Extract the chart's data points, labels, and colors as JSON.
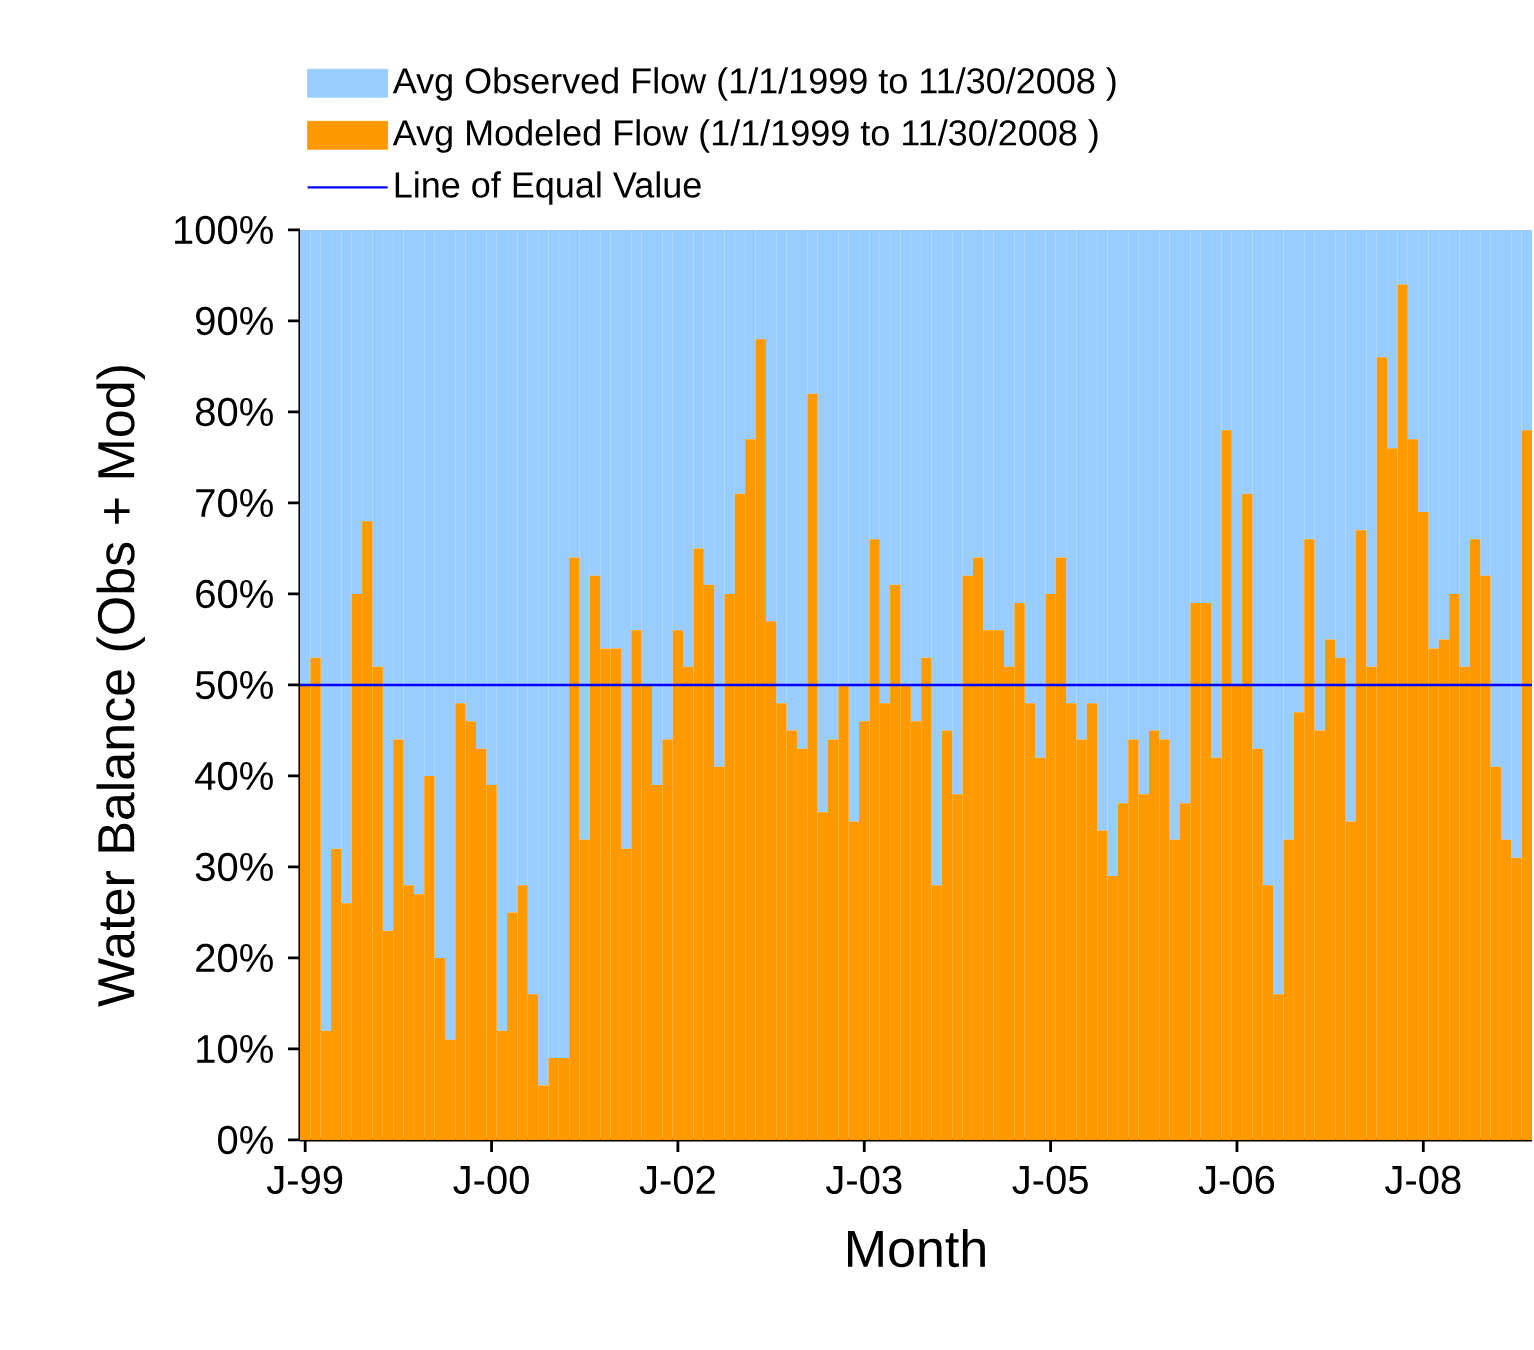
{
  "chart_data": {
    "type": "bar",
    "stacked": true,
    "xlabel": "Month",
    "ylabel": "Water Balance (Obs + Mod)",
    "categories": [
      "J-99",
      null,
      null,
      null,
      null,
      null,
      null,
      null,
      null,
      null,
      null,
      null,
      null,
      null,
      null,
      null,
      null,
      null,
      "J-00",
      null,
      null,
      null,
      null,
      null,
      null,
      null,
      null,
      null,
      null,
      null,
      null,
      null,
      null,
      null,
      null,
      null,
      "J-02",
      null,
      null,
      null,
      null,
      null,
      null,
      null,
      null,
      null,
      null,
      null,
      null,
      null,
      null,
      null,
      null,
      null,
      "J-03",
      null,
      null,
      null,
      null,
      null,
      null,
      null,
      null,
      null,
      null,
      null,
      null,
      null,
      null,
      null,
      null,
      null,
      "J-05",
      null,
      null,
      null,
      null,
      null,
      null,
      null,
      null,
      null,
      null,
      null,
      null,
      null,
      null,
      null,
      null,
      null,
      "J-06",
      null,
      null,
      null,
      null,
      null,
      null,
      null,
      null,
      null,
      null,
      null,
      null,
      null,
      null,
      null,
      null,
      null,
      "J-08",
      null,
      null,
      null,
      null,
      null,
      null,
      null,
      null,
      null,
      null
    ],
    "series": [
      {
        "name": "Avg Modeled Flow (1/1/1999 to 11/30/2008 )",
        "color": "#ff9900",
        "values": [
          50,
          53,
          12,
          32,
          26,
          60,
          68,
          52,
          23,
          44,
          28,
          27,
          40,
          20,
          11,
          48,
          46,
          43,
          39,
          12,
          25,
          28,
          16,
          6,
          9,
          9,
          64,
          33,
          62,
          54,
          54,
          32,
          56,
          50,
          39,
          44,
          56,
          52,
          65,
          61,
          41,
          60,
          71,
          77,
          88,
          57,
          48,
          45,
          43,
          82,
          36,
          44,
          50,
          35,
          46,
          66,
          48,
          61,
          50,
          46,
          53,
          28,
          45,
          38,
          62,
          64,
          56,
          56,
          52,
          59,
          48,
          42,
          60,
          64,
          48,
          44,
          48,
          34,
          29,
          37,
          44,
          38,
          45,
          44,
          33,
          37,
          59,
          59,
          42,
          78,
          50,
          71,
          43,
          28,
          16,
          33,
          47,
          66,
          45,
          55,
          53,
          35,
          67,
          52,
          86,
          76,
          94,
          77,
          69,
          54,
          55,
          60,
          52,
          66,
          62,
          41,
          33,
          31,
          78
        ]
      },
      {
        "name": "Avg Observed Flow (1/1/1999 to 11/30/2008 )",
        "color": "#99ccff",
        "values": [
          50,
          47,
          88,
          68,
          74,
          40,
          32,
          48,
          77,
          56,
          72,
          73,
          60,
          80,
          89,
          52,
          54,
          57,
          61,
          88,
          75,
          72,
          84,
          94,
          91,
          91,
          36,
          67,
          38,
          46,
          46,
          68,
          44,
          50,
          61,
          56,
          44,
          48,
          35,
          39,
          59,
          40,
          29,
          23,
          12,
          43,
          52,
          55,
          57,
          18,
          64,
          56,
          50,
          65,
          54,
          34,
          52,
          39,
          50,
          54,
          47,
          72,
          55,
          62,
          38,
          36,
          44,
          44,
          48,
          41,
          52,
          58,
          40,
          36,
          52,
          56,
          52,
          66,
          71,
          63,
          56,
          62,
          55,
          56,
          67,
          63,
          41,
          41,
          58,
          22,
          50,
          29,
          57,
          72,
          84,
          67,
          53,
          34,
          55,
          45,
          47,
          65,
          33,
          48,
          14,
          24,
          6,
          23,
          31,
          46,
          45,
          40,
          48,
          34,
          38,
          59,
          67,
          69,
          22
        ]
      }
    ],
    "ylim": [
      0,
      100
    ],
    "yticks": [
      {
        "value": 0,
        "label": "0%"
      },
      {
        "value": 10,
        "label": "10%"
      },
      {
        "value": 20,
        "label": "20%"
      },
      {
        "value": 30,
        "label": "30%"
      },
      {
        "value": 40,
        "label": "40%"
      },
      {
        "value": 50,
        "label": "50%"
      },
      {
        "value": 60,
        "label": "60%"
      },
      {
        "value": 70,
        "label": "70%"
      },
      {
        "value": 80,
        "label": "80%"
      },
      {
        "value": 90,
        "label": "90%"
      },
      {
        "value": 100,
        "label": "100%"
      }
    ],
    "ref_lines": [
      {
        "axis": "y",
        "value": 50,
        "label": "Line of Equal Value",
        "color": "#0000ff"
      }
    ],
    "legend": "top",
    "grid": false
  }
}
